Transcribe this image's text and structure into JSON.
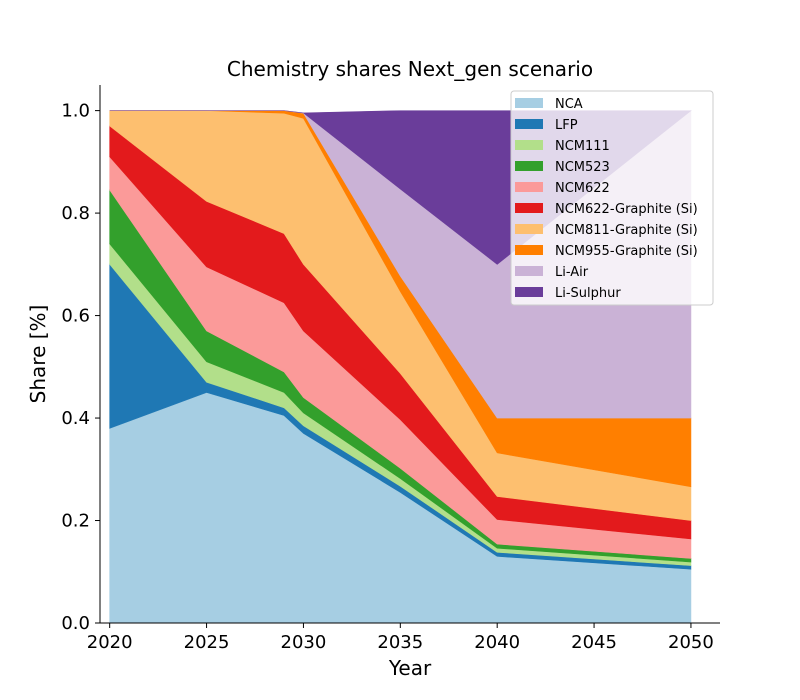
{
  "chart_data": {
    "type": "area",
    "title": "Chemistry shares Next_gen scenario",
    "xlabel": "Year",
    "ylabel": "Share [%]",
    "xlim": [
      2019.5,
      2051.5
    ],
    "ylim": [
      0,
      1.05
    ],
    "xticks": [
      2020,
      2025,
      2030,
      2035,
      2040,
      2045,
      2050
    ],
    "yticks": [
      0.0,
      0.2,
      0.4,
      0.6,
      0.8,
      1.0
    ],
    "xtick_labels": [
      "2020",
      "2025",
      "2030",
      "2035",
      "2040",
      "2045",
      "2050"
    ],
    "ytick_labels": [
      "0.0",
      "0.2",
      "0.4",
      "0.6",
      "0.8",
      "1.0"
    ],
    "legend_position": "top-right",
    "grid": false,
    "x": [
      2020,
      2025,
      2029,
      2030,
      2035,
      2040,
      2050
    ],
    "series": [
      {
        "name": "NCA",
        "color": "#a6cee3",
        "values": [
          0.38,
          0.45,
          0.405,
          0.37,
          0.255,
          0.13,
          0.105
        ]
      },
      {
        "name": "LFP",
        "color": "#1f78b4",
        "values": [
          0.32,
          0.02,
          0.015,
          0.015,
          0.012,
          0.008,
          0.007
        ]
      },
      {
        "name": "NCM111",
        "color": "#b2df8a",
        "values": [
          0.04,
          0.04,
          0.03,
          0.025,
          0.015,
          0.008,
          0.007
        ]
      },
      {
        "name": "NCM523",
        "color": "#33a02c",
        "values": [
          0.105,
          0.06,
          0.04,
          0.03,
          0.02,
          0.008,
          0.007
        ]
      },
      {
        "name": "NCM622",
        "color": "#fb9a99",
        "values": [
          0.065,
          0.125,
          0.135,
          0.13,
          0.095,
          0.048,
          0.038
        ]
      },
      {
        "name": "NCM622-Graphite (Si)",
        "color": "#e31a1c",
        "values": [
          0.06,
          0.128,
          0.135,
          0.13,
          0.09,
          0.045,
          0.036
        ]
      },
      {
        "name": "NCM811-Graphite (Si)",
        "color": "#fdbf6f",
        "values": [
          0.03,
          0.177,
          0.235,
          0.285,
          0.16,
          0.085,
          0.066
        ]
      },
      {
        "name": "NCM955-Graphite (Si)",
        "color": "#ff7f00",
        "values": [
          0.0,
          0.0,
          0.005,
          0.01,
          0.03,
          0.068,
          0.134
        ]
      },
      {
        "name": "Li-Air",
        "color": "#cab2d6",
        "values": [
          0.0,
          0.0,
          0.0,
          0.0005,
          0.17,
          0.3,
          0.6
        ]
      },
      {
        "name": "Li-Sulphur",
        "color": "#6a3d9a",
        "values": [
          0.0,
          0.0,
          0.0,
          0.0,
          0.153,
          0.3,
          0.0
        ]
      }
    ]
  }
}
